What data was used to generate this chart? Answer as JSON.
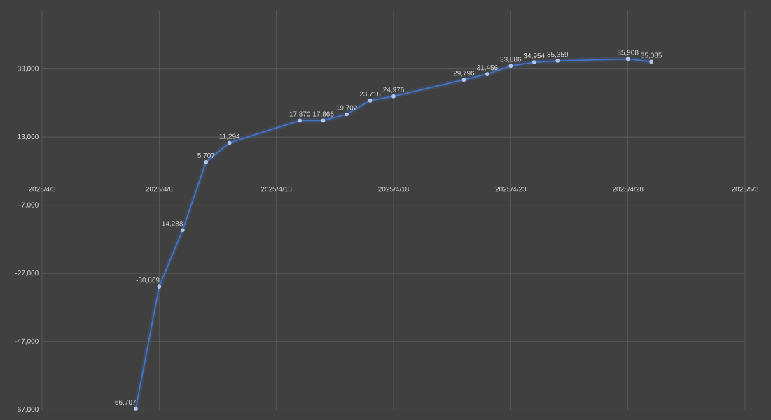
{
  "chart_data": {
    "type": "line",
    "x": [
      "2025-04-07",
      "2025-04-08",
      "2025-04-09",
      "2025-04-10",
      "2025-04-11",
      "2025-04-14",
      "2025-04-15",
      "2025-04-16",
      "2025-04-17",
      "2025-04-18",
      "2025-04-21",
      "2025-04-22",
      "2025-04-23",
      "2025-04-24",
      "2025-04-25",
      "2025-04-28",
      "2025-04-29"
    ],
    "series": [
      {
        "color": "#4472c4",
        "values": [
          -66707,
          -30869,
          -14288,
          5707,
          11294,
          17870,
          17866,
          19702,
          23718,
          24976,
          29796,
          31456,
          33886,
          34954,
          35359,
          35908,
          35085
        ],
        "value_labels": [
          "-66,707",
          "-30,869",
          "-14,288",
          "5,707",
          "11,294",
          "17,870",
          "17,866",
          "19,702",
          "23,718",
          "24,976",
          "29,796",
          "31,456",
          "33,886",
          "34,954",
          "35,359",
          "35,908",
          "35,085"
        ]
      }
    ],
    "xlim": [
      "2025-04-03",
      "2025-05-03"
    ],
    "xticks": [
      {
        "value": "2025-04-03",
        "label": "2025/4/3"
      },
      {
        "value": "2025-04-08",
        "label": "2025/4/8"
      },
      {
        "value": "2025-04-13",
        "label": "2025/4/13"
      },
      {
        "value": "2025-04-18",
        "label": "2025/4/18"
      },
      {
        "value": "2025-04-23",
        "label": "2025/4/23"
      },
      {
        "value": "2025-04-28",
        "label": "2025/4/28"
      },
      {
        "value": "2025-05-03",
        "label": "2025/5/3"
      }
    ],
    "ylim": [
      -67000,
      50000
    ],
    "yticks": [
      {
        "value": -67000,
        "label": "-67,000"
      },
      {
        "value": -47000,
        "label": "-47,000"
      },
      {
        "value": -27000,
        "label": "-27,000"
      },
      {
        "value": -7000,
        "label": "-7,000"
      },
      {
        "value": 13000,
        "label": "13,000"
      },
      {
        "value": 33000,
        "label": "33,000"
      }
    ],
    "grid": true,
    "marker": "circle",
    "line_style": "solid"
  }
}
